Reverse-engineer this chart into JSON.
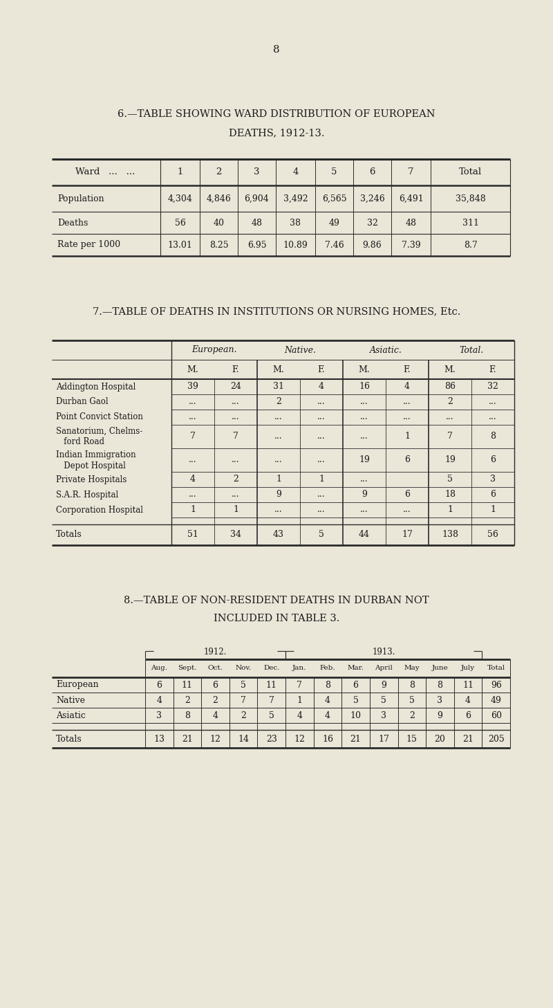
{
  "page_number": "8",
  "bg_color": "#eae6d8",
  "text_color": "#1a1a1a",
  "table6_title1": "6.—TABLE SHOWING WARD DISTRIBUTION OF EUROPEAN",
  "table6_title2": "DEATHS, 1912-13.",
  "table6_headers": [
    "Ward",
    "1",
    "2",
    "3",
    "4",
    "5",
    "6",
    "7",
    "Total"
  ],
  "table6_rows": [
    [
      "Population",
      "4,304",
      "4,846",
      "6,904",
      "3,492",
      "6,565",
      "3,246",
      "6,491",
      "35,848"
    ],
    [
      "Deaths",
      "56",
      "40",
      "48",
      "38",
      "49",
      "32",
      "48",
      "311"
    ],
    [
      "Rate per 1000",
      "13.01",
      "8.25",
      "6.95",
      "10.89",
      "7.46",
      "9.86",
      "7.39",
      "8.7"
    ]
  ],
  "table7_title": "7.—TABLE OF DEATHS IN INSTITUTIONS OR NURSING HOMES, Etc.",
  "table7_col_groups": [
    "European.",
    "Native.",
    "Asiatic.",
    "Total."
  ],
  "table7_sub_headers": [
    "M.",
    "F.",
    "M.",
    "F.",
    "M.",
    "F.",
    "M.",
    "F."
  ],
  "table7_row_labels": [
    "Addington Hospital",
    "Durban Gaol",
    "Point Convict Station",
    "Sanatorium, Chelms-\nford Road",
    "Indian Immigration\nDepot Hospital",
    "Private Hospitals",
    "S.A.R. Hospital",
    "Corporation Hospital",
    "Totals"
  ],
  "table7_data": [
    [
      "39",
      "24",
      "31",
      "4",
      "16",
      "4",
      "86",
      "32"
    ],
    [
      "...",
      "...",
      "2",
      "...",
      "...",
      "...",
      "2",
      "..."
    ],
    [
      "...",
      "...",
      "...",
      "...",
      "...",
      "...",
      "...",
      "..."
    ],
    [
      "7",
      "7",
      "...",
      "...",
      "...",
      "1",
      "7",
      "8"
    ],
    [
      "...",
      "...",
      "...",
      "...",
      "19",
      "6",
      "19",
      "6"
    ],
    [
      "4",
      "2",
      "1",
      "1",
      "...",
      "",
      "5",
      "3"
    ],
    [
      "...",
      "...",
      "9",
      "...",
      "9",
      "6",
      "18",
      "6"
    ],
    [
      "1",
      "1",
      "...",
      "...",
      "...",
      "...",
      "1",
      "1"
    ],
    [
      "51",
      "34",
      "43",
      "5",
      "44",
      "17",
      "138",
      "56"
    ]
  ],
  "table8_title1": "8.—TABLE OF NON-RESIDENT DEATHS IN DURBAN NOT",
  "table8_title2": "INCLUDED IN TABLE 3.",
  "table8_year1": "1912.",
  "table8_year2": "1913.",
  "table8_headers": [
    "Aug.",
    "Sept.",
    "Oct.",
    "Nov.",
    "Dec.",
    "Jan.",
    "Feb.",
    "Mar.",
    "April",
    "May",
    "June",
    "July",
    "Total"
  ],
  "table8_row_labels": [
    "European",
    "Native",
    "Asiatic",
    "Totals"
  ],
  "table8_data": [
    [
      "6",
      "11",
      "6",
      "5",
      "11",
      "7",
      "8",
      "6",
      "9",
      "8",
      "8",
      "11",
      "96"
    ],
    [
      "4",
      "2",
      "2",
      "7",
      "7",
      "1",
      "4",
      "5",
      "5",
      "5",
      "3",
      "4",
      "49"
    ],
    [
      "3",
      "8",
      "4",
      "2",
      "5",
      "4",
      "4",
      "10",
      "3",
      "2",
      "9",
      "6",
      "60"
    ],
    [
      "13",
      "21",
      "12",
      "14",
      "23",
      "12",
      "16",
      "21",
      "17",
      "15",
      "20",
      "21",
      "205"
    ]
  ]
}
